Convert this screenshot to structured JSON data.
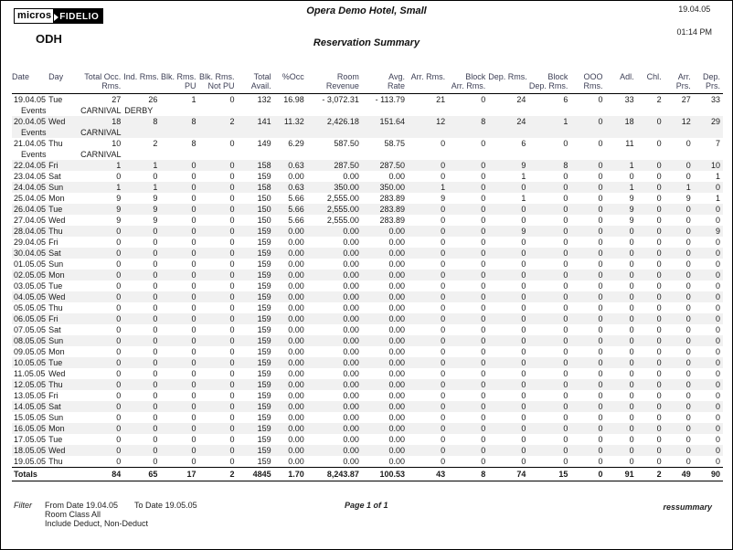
{
  "header": {
    "logo_micros": "micros",
    "logo_fidelio": "FIDELIO",
    "property_code": "ODH",
    "hotel_name": "Opera Demo Hotel, Small",
    "report_title": "Reservation Summary",
    "date": "19.04.05",
    "time": "01:14 PM"
  },
  "table": {
    "columns": [
      {
        "line1": "Date",
        "line2": "",
        "align": "left"
      },
      {
        "line1": "Day",
        "line2": "",
        "align": "left"
      },
      {
        "line1": "Total Occ.",
        "line2": "Rms.",
        "align": "right"
      },
      {
        "line1": "Ind. Rms.",
        "line2": "",
        "align": "right"
      },
      {
        "line1": "Blk. Rms.",
        "line2": "PU",
        "align": "right"
      },
      {
        "line1": "Blk. Rms.",
        "line2": "Not PU",
        "align": "right"
      },
      {
        "line1": "Total",
        "line2": "Avail.",
        "align": "right"
      },
      {
        "line1": "%Occ",
        "line2": "",
        "align": "right"
      },
      {
        "line1": "Room",
        "line2": "Revenue",
        "align": "right"
      },
      {
        "line1": "Avg.",
        "line2": "Rate",
        "align": "right"
      },
      {
        "line1": "Arr. Rms.",
        "line2": "",
        "align": "right"
      },
      {
        "line1": "Block",
        "line2": "Arr. Rms.",
        "align": "right"
      },
      {
        "line1": "Dep. Rms.",
        "line2": "",
        "align": "right"
      },
      {
        "line1": "Block",
        "line2": "Dep. Rms.",
        "align": "right"
      },
      {
        "line1": "OOO",
        "line2": "Rms.",
        "align": "right"
      },
      {
        "line1": "Adl.",
        "line2": "",
        "align": "right"
      },
      {
        "line1": "Chl.",
        "line2": "",
        "align": "right"
      },
      {
        "line1": "Arr.",
        "line2": "Prs.",
        "align": "right"
      },
      {
        "line1": "Dep.",
        "line2": "Prs.",
        "align": "right"
      }
    ],
    "events_label": "Events",
    "rows": [
      {
        "date": "19.04.05",
        "day": "Tue",
        "values": [
          "27",
          "26",
          "1",
          "0",
          "132",
          "16.98",
          "- 3,072.31",
          "- 113.79",
          "21",
          "0",
          "24",
          "6",
          "0",
          "33",
          "2",
          "27",
          "33"
        ],
        "events": [
          "CARNIVAL",
          "DERBY"
        ]
      },
      {
        "date": "20.04.05",
        "day": "Wed",
        "values": [
          "18",
          "8",
          "8",
          "2",
          "141",
          "11.32",
          "2,426.18",
          "151.64",
          "12",
          "8",
          "24",
          "1",
          "0",
          "18",
          "0",
          "12",
          "29"
        ],
        "events": [
          "CARNIVAL"
        ]
      },
      {
        "date": "21.04.05",
        "day": "Thu",
        "values": [
          "10",
          "2",
          "8",
          "0",
          "149",
          "6.29",
          "587.50",
          "58.75",
          "0",
          "0",
          "6",
          "0",
          "0",
          "11",
          "0",
          "0",
          "7"
        ],
        "events": [
          "CARNIVAL"
        ]
      },
      {
        "date": "22.04.05",
        "day": "Fri",
        "values": [
          "1",
          "1",
          "0",
          "0",
          "158",
          "0.63",
          "287.50",
          "287.50",
          "0",
          "0",
          "9",
          "8",
          "0",
          "1",
          "0",
          "0",
          "10"
        ]
      },
      {
        "date": "23.04.05",
        "day": "Sat",
        "values": [
          "0",
          "0",
          "0",
          "0",
          "159",
          "0.00",
          "0.00",
          "0.00",
          "0",
          "0",
          "1",
          "0",
          "0",
          "0",
          "0",
          "0",
          "1"
        ]
      },
      {
        "date": "24.04.05",
        "day": "Sun",
        "values": [
          "1",
          "1",
          "0",
          "0",
          "158",
          "0.63",
          "350.00",
          "350.00",
          "1",
          "0",
          "0",
          "0",
          "0",
          "1",
          "0",
          "1",
          "0"
        ]
      },
      {
        "date": "25.04.05",
        "day": "Mon",
        "values": [
          "9",
          "9",
          "0",
          "0",
          "150",
          "5.66",
          "2,555.00",
          "283.89",
          "9",
          "0",
          "1",
          "0",
          "0",
          "9",
          "0",
          "9",
          "1"
        ]
      },
      {
        "date": "26.04.05",
        "day": "Tue",
        "values": [
          "9",
          "9",
          "0",
          "0",
          "150",
          "5.66",
          "2,555.00",
          "283.89",
          "0",
          "0",
          "0",
          "0",
          "0",
          "9",
          "0",
          "0",
          "0"
        ]
      },
      {
        "date": "27.04.05",
        "day": "Wed",
        "values": [
          "9",
          "9",
          "0",
          "0",
          "150",
          "5.66",
          "2,555.00",
          "283.89",
          "0",
          "0",
          "0",
          "0",
          "0",
          "9",
          "0",
          "0",
          "0"
        ]
      },
      {
        "date": "28.04.05",
        "day": "Thu",
        "values": [
          "0",
          "0",
          "0",
          "0",
          "159",
          "0.00",
          "0.00",
          "0.00",
          "0",
          "0",
          "9",
          "0",
          "0",
          "0",
          "0",
          "0",
          "9"
        ]
      },
      {
        "date": "29.04.05",
        "day": "Fri",
        "values": [
          "0",
          "0",
          "0",
          "0",
          "159",
          "0.00",
          "0.00",
          "0.00",
          "0",
          "0",
          "0",
          "0",
          "0",
          "0",
          "0",
          "0",
          "0"
        ]
      },
      {
        "date": "30.04.05",
        "day": "Sat",
        "values": [
          "0",
          "0",
          "0",
          "0",
          "159",
          "0.00",
          "0.00",
          "0.00",
          "0",
          "0",
          "0",
          "0",
          "0",
          "0",
          "0",
          "0",
          "0"
        ]
      },
      {
        "date": "01.05.05",
        "day": "Sun",
        "values": [
          "0",
          "0",
          "0",
          "0",
          "159",
          "0.00",
          "0.00",
          "0.00",
          "0",
          "0",
          "0",
          "0",
          "0",
          "0",
          "0",
          "0",
          "0"
        ]
      },
      {
        "date": "02.05.05",
        "day": "Mon",
        "values": [
          "0",
          "0",
          "0",
          "0",
          "159",
          "0.00",
          "0.00",
          "0.00",
          "0",
          "0",
          "0",
          "0",
          "0",
          "0",
          "0",
          "0",
          "0"
        ]
      },
      {
        "date": "03.05.05",
        "day": "Tue",
        "values": [
          "0",
          "0",
          "0",
          "0",
          "159",
          "0.00",
          "0.00",
          "0.00",
          "0",
          "0",
          "0",
          "0",
          "0",
          "0",
          "0",
          "0",
          "0"
        ]
      },
      {
        "date": "04.05.05",
        "day": "Wed",
        "values": [
          "0",
          "0",
          "0",
          "0",
          "159",
          "0.00",
          "0.00",
          "0.00",
          "0",
          "0",
          "0",
          "0",
          "0",
          "0",
          "0",
          "0",
          "0"
        ]
      },
      {
        "date": "05.05.05",
        "day": "Thu",
        "values": [
          "0",
          "0",
          "0",
          "0",
          "159",
          "0.00",
          "0.00",
          "0.00",
          "0",
          "0",
          "0",
          "0",
          "0",
          "0",
          "0",
          "0",
          "0"
        ]
      },
      {
        "date": "06.05.05",
        "day": "Fri",
        "values": [
          "0",
          "0",
          "0",
          "0",
          "159",
          "0.00",
          "0.00",
          "0.00",
          "0",
          "0",
          "0",
          "0",
          "0",
          "0",
          "0",
          "0",
          "0"
        ]
      },
      {
        "date": "07.05.05",
        "day": "Sat",
        "values": [
          "0",
          "0",
          "0",
          "0",
          "159",
          "0.00",
          "0.00",
          "0.00",
          "0",
          "0",
          "0",
          "0",
          "0",
          "0",
          "0",
          "0",
          "0"
        ]
      },
      {
        "date": "08.05.05",
        "day": "Sun",
        "values": [
          "0",
          "0",
          "0",
          "0",
          "159",
          "0.00",
          "0.00",
          "0.00",
          "0",
          "0",
          "0",
          "0",
          "0",
          "0",
          "0",
          "0",
          "0"
        ]
      },
      {
        "date": "09.05.05",
        "day": "Mon",
        "values": [
          "0",
          "0",
          "0",
          "0",
          "159",
          "0.00",
          "0.00",
          "0.00",
          "0",
          "0",
          "0",
          "0",
          "0",
          "0",
          "0",
          "0",
          "0"
        ]
      },
      {
        "date": "10.05.05",
        "day": "Tue",
        "values": [
          "0",
          "0",
          "0",
          "0",
          "159",
          "0.00",
          "0.00",
          "0.00",
          "0",
          "0",
          "0",
          "0",
          "0",
          "0",
          "0",
          "0",
          "0"
        ]
      },
      {
        "date": "11.05.05",
        "day": "Wed",
        "values": [
          "0",
          "0",
          "0",
          "0",
          "159",
          "0.00",
          "0.00",
          "0.00",
          "0",
          "0",
          "0",
          "0",
          "0",
          "0",
          "0",
          "0",
          "0"
        ]
      },
      {
        "date": "12.05.05",
        "day": "Thu",
        "values": [
          "0",
          "0",
          "0",
          "0",
          "159",
          "0.00",
          "0.00",
          "0.00",
          "0",
          "0",
          "0",
          "0",
          "0",
          "0",
          "0",
          "0",
          "0"
        ]
      },
      {
        "date": "13.05.05",
        "day": "Fri",
        "values": [
          "0",
          "0",
          "0",
          "0",
          "159",
          "0.00",
          "0.00",
          "0.00",
          "0",
          "0",
          "0",
          "0",
          "0",
          "0",
          "0",
          "0",
          "0"
        ]
      },
      {
        "date": "14.05.05",
        "day": "Sat",
        "values": [
          "0",
          "0",
          "0",
          "0",
          "159",
          "0.00",
          "0.00",
          "0.00",
          "0",
          "0",
          "0",
          "0",
          "0",
          "0",
          "0",
          "0",
          "0"
        ]
      },
      {
        "date": "15.05.05",
        "day": "Sun",
        "values": [
          "0",
          "0",
          "0",
          "0",
          "159",
          "0.00",
          "0.00",
          "0.00",
          "0",
          "0",
          "0",
          "0",
          "0",
          "0",
          "0",
          "0",
          "0"
        ]
      },
      {
        "date": "16.05.05",
        "day": "Mon",
        "values": [
          "0",
          "0",
          "0",
          "0",
          "159",
          "0.00",
          "0.00",
          "0.00",
          "0",
          "0",
          "0",
          "0",
          "0",
          "0",
          "0",
          "0",
          "0"
        ]
      },
      {
        "date": "17.05.05",
        "day": "Tue",
        "values": [
          "0",
          "0",
          "0",
          "0",
          "159",
          "0.00",
          "0.00",
          "0.00",
          "0",
          "0",
          "0",
          "0",
          "0",
          "0",
          "0",
          "0",
          "0"
        ]
      },
      {
        "date": "18.05.05",
        "day": "Wed",
        "values": [
          "0",
          "0",
          "0",
          "0",
          "159",
          "0.00",
          "0.00",
          "0.00",
          "0",
          "0",
          "0",
          "0",
          "0",
          "0",
          "0",
          "0",
          "0"
        ]
      },
      {
        "date": "19.05.05",
        "day": "Thu",
        "values": [
          "0",
          "0",
          "0",
          "0",
          "159",
          "0.00",
          "0.00",
          "0.00",
          "0",
          "0",
          "0",
          "0",
          "0",
          "0",
          "0",
          "0",
          "0"
        ]
      }
    ],
    "totals": {
      "label": "Totals",
      "values": [
        "84",
        "65",
        "17",
        "2",
        "4845",
        "1.70",
        "8,243.87",
        "100.53",
        "43",
        "8",
        "74",
        "15",
        "0",
        "91",
        "2",
        "49",
        "90"
      ]
    }
  },
  "footer": {
    "filter_label": "Filter",
    "from_date": "From Date 19.04.05",
    "to_date": "To Date 19.05.05",
    "room_class": "Room Class All",
    "include": "Include Deduct, Non-Deduct",
    "page": "Page 1 of 1",
    "report_code": "ressummary"
  }
}
